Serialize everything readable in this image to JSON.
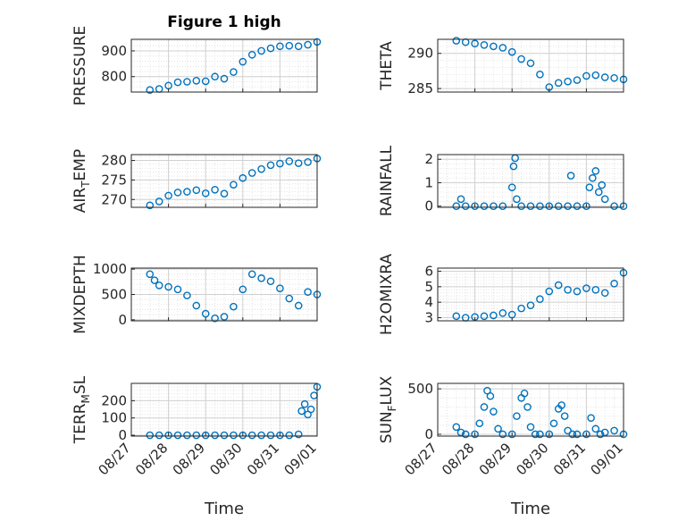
{
  "figure": {
    "title": "Figure 1 high",
    "xlabel": "Time",
    "x_ticklabels": [
      "08/27",
      "08/28",
      "08/29",
      "08/30",
      "08/31",
      "09/01"
    ]
  },
  "chart_data": [
    {
      "type": "scatter",
      "ylabel": "PRESSURE",
      "ylabel_sub": "",
      "ylabel_tail": "",
      "ylim": [
        740,
        945
      ],
      "yticks": [
        800,
        900
      ],
      "xlim": [
        "08/27",
        "09/01"
      ],
      "grid": "on",
      "marker_color": "#0072BD",
      "x": [
        "08/27 12:00",
        "08/27 18:00",
        "08/28 00:00",
        "08/28 06:00",
        "08/28 12:00",
        "08/28 18:00",
        "08/29 00:00",
        "08/29 06:00",
        "08/29 12:00",
        "08/29 18:00",
        "08/30 00:00",
        "08/30 06:00",
        "08/30 12:00",
        "08/30 18:00",
        "08/31 00:00",
        "08/31 06:00",
        "08/31 12:00",
        "08/31 18:00",
        "09/01 00:00"
      ],
      "y": [
        748,
        752,
        765,
        778,
        780,
        784,
        782,
        800,
        792,
        818,
        858,
        885,
        900,
        910,
        918,
        920,
        918,
        924,
        935
      ]
    },
    {
      "type": "scatter",
      "ylabel": "THETA",
      "ylabel_sub": "",
      "ylabel_tail": "",
      "ylim": [
        284.5,
        292
      ],
      "yticks": [
        285,
        290
      ],
      "xlim": [
        "08/27",
        "09/01"
      ],
      "grid": "on",
      "marker_color": "#0072BD",
      "x": [
        "08/27 12:00",
        "08/27 18:00",
        "08/28 00:00",
        "08/28 06:00",
        "08/28 12:00",
        "08/28 18:00",
        "08/29 00:00",
        "08/29 06:00",
        "08/29 12:00",
        "08/29 18:00",
        "08/30 00:00",
        "08/30 06:00",
        "08/30 12:00",
        "08/30 18:00",
        "08/31 00:00",
        "08/31 06:00",
        "08/31 12:00",
        "08/31 18:00",
        "09/01 00:00"
      ],
      "y": [
        291.8,
        291.6,
        291.4,
        291.2,
        291.0,
        290.8,
        290.2,
        289.2,
        288.6,
        287.0,
        285.2,
        285.8,
        286.0,
        286.2,
        286.8,
        286.9,
        286.6,
        286.5,
        286.3
      ]
    },
    {
      "type": "scatter",
      "ylabel": "AIR",
      "ylabel_sub": "T",
      "ylabel_tail": "EMP",
      "ylim": [
        268,
        281.5
      ],
      "yticks": [
        270,
        275,
        280
      ],
      "xlim": [
        "08/27",
        "09/01"
      ],
      "grid": "on",
      "marker_color": "#0072BD",
      "x": [
        "08/27 12:00",
        "08/27 18:00",
        "08/28 00:00",
        "08/28 06:00",
        "08/28 12:00",
        "08/28 18:00",
        "08/29 00:00",
        "08/29 06:00",
        "08/29 12:00",
        "08/29 18:00",
        "08/30 00:00",
        "08/30 06:00",
        "08/30 12:00",
        "08/30 18:00",
        "08/31 00:00",
        "08/31 06:00",
        "08/31 12:00",
        "08/31 18:00",
        "09/01 00:00"
      ],
      "y": [
        268.5,
        269.5,
        271.0,
        271.8,
        272.0,
        272.4,
        271.6,
        272.5,
        271.5,
        273.8,
        275.5,
        276.8,
        277.8,
        278.8,
        279.2,
        279.8,
        279.3,
        279.6,
        280.5
      ]
    },
    {
      "type": "scatter",
      "ylabel": "RAINFALL",
      "ylabel_sub": "",
      "ylabel_tail": "",
      "ylim": [
        -0.05,
        2.2
      ],
      "yticks": [
        0,
        1,
        2
      ],
      "xlim": [
        "08/27",
        "09/01"
      ],
      "grid": "on",
      "marker_color": "#0072BD",
      "x": [
        "08/27 12:00",
        "08/27 15:00",
        "08/27 18:00",
        "08/28 00:00",
        "08/28 06:00",
        "08/28 12:00",
        "08/28 18:00",
        "08/29 00:00",
        "08/29 01:00",
        "08/29 02:00",
        "08/29 03:00",
        "08/29 06:00",
        "08/29 12:00",
        "08/29 18:00",
        "08/30 00:00",
        "08/30 06:00",
        "08/30 12:00",
        "08/30 14:00",
        "08/30 18:00",
        "08/31 00:00",
        "08/31 02:00",
        "08/31 04:00",
        "08/31 06:00",
        "08/31 08:00",
        "08/31 10:00",
        "08/31 12:00",
        "08/31 18:00",
        "09/01 00:00"
      ],
      "y": [
        0,
        0.3,
        0,
        0,
        0,
        0,
        0,
        0.8,
        1.7,
        2.05,
        0.3,
        0,
        0,
        0,
        0,
        0,
        0,
        1.3,
        0,
        0,
        0.8,
        1.2,
        1.5,
        0.6,
        0.9,
        0.3,
        0,
        0
      ]
    },
    {
      "type": "scatter",
      "ylabel": "MIXDEPTH",
      "ylabel_sub": "",
      "ylabel_tail": "",
      "ylim": [
        -20,
        1020
      ],
      "yticks": [
        0,
        500,
        1000
      ],
      "xlim": [
        "08/27",
        "09/01"
      ],
      "grid": "on",
      "marker_color": "#0072BD",
      "x": [
        "08/27 12:00",
        "08/27 15:00",
        "08/27 18:00",
        "08/28 00:00",
        "08/28 06:00",
        "08/28 12:00",
        "08/28 18:00",
        "08/29 00:00",
        "08/29 06:00",
        "08/29 12:00",
        "08/29 18:00",
        "08/30 00:00",
        "08/30 06:00",
        "08/30 12:00",
        "08/30 18:00",
        "08/31 00:00",
        "08/31 06:00",
        "08/31 12:00",
        "08/31 18:00",
        "09/01 00:00"
      ],
      "y": [
        900,
        780,
        680,
        650,
        600,
        480,
        280,
        120,
        30,
        60,
        260,
        600,
        900,
        820,
        760,
        620,
        420,
        280,
        550,
        500
      ]
    },
    {
      "type": "scatter",
      "ylabel": "H2OMIXRA",
      "ylabel_sub": "",
      "ylabel_tail": "",
      "ylim": [
        2.8,
        6.2
      ],
      "yticks": [
        3,
        4,
        5,
        6
      ],
      "xlim": [
        "08/27",
        "09/01"
      ],
      "grid": "on",
      "marker_color": "#0072BD",
      "x": [
        "08/27 12:00",
        "08/27 18:00",
        "08/28 00:00",
        "08/28 06:00",
        "08/28 12:00",
        "08/28 18:00",
        "08/29 00:00",
        "08/29 06:00",
        "08/29 12:00",
        "08/29 18:00",
        "08/30 00:00",
        "08/30 06:00",
        "08/30 12:00",
        "08/30 18:00",
        "08/31 00:00",
        "08/31 06:00",
        "08/31 12:00",
        "08/31 18:00",
        "09/01 00:00"
      ],
      "y": [
        3.1,
        3.0,
        3.05,
        3.1,
        3.15,
        3.3,
        3.2,
        3.6,
        3.8,
        4.2,
        4.7,
        5.1,
        4.8,
        4.7,
        4.9,
        4.8,
        4.6,
        5.2,
        5.9
      ]
    },
    {
      "type": "scatter",
      "ylabel": "TERR",
      "ylabel_sub": "M",
      "ylabel_tail": "SL",
      "ylim": [
        -5,
        300
      ],
      "yticks": [
        0,
        100,
        200
      ],
      "xlim": [
        "08/27",
        "09/01"
      ],
      "grid": "on",
      "marker_color": "#0072BD",
      "x": [
        "08/27 12:00",
        "08/27 18:00",
        "08/28 00:00",
        "08/28 06:00",
        "08/28 12:00",
        "08/28 18:00",
        "08/29 00:00",
        "08/29 06:00",
        "08/29 12:00",
        "08/29 18:00",
        "08/30 00:00",
        "08/30 06:00",
        "08/30 12:00",
        "08/30 18:00",
        "08/31 00:00",
        "08/31 06:00",
        "08/31 12:00",
        "08/31 14:00",
        "08/31 16:00",
        "08/31 18:00",
        "08/31 20:00",
        "08/31 22:00",
        "09/01 00:00"
      ],
      "y": [
        0,
        0,
        0,
        0,
        0,
        0,
        0,
        0,
        0,
        0,
        0,
        0,
        0,
        0,
        0,
        0,
        5,
        140,
        180,
        120,
        150,
        230,
        280
      ]
    },
    {
      "type": "scatter",
      "ylabel": "SUN",
      "ylabel_sub": "F",
      "ylabel_tail": "LUX",
      "ylim": [
        -20,
        560
      ],
      "yticks": [
        0,
        500
      ],
      "xlim": [
        "08/27",
        "09/01"
      ],
      "grid": "on",
      "marker_color": "#0072BD",
      "x": [
        "08/27 12:00",
        "08/27 15:00",
        "08/27 18:00",
        "08/28 00:00",
        "08/28 03:00",
        "08/28 06:00",
        "08/28 08:00",
        "08/28 10:00",
        "08/28 12:00",
        "08/28 15:00",
        "08/28 18:00",
        "08/29 00:00",
        "08/29 03:00",
        "08/29 06:00",
        "08/29 08:00",
        "08/29 10:00",
        "08/29 12:00",
        "08/29 15:00",
        "08/29 18:00",
        "08/30 00:00",
        "08/30 03:00",
        "08/30 06:00",
        "08/30 08:00",
        "08/30 10:00",
        "08/30 12:00",
        "08/30 15:00",
        "08/30 18:00",
        "08/31 00:00",
        "08/31 03:00",
        "08/31 06:00",
        "08/31 09:00",
        "08/31 12:00",
        "08/31 18:00",
        "09/01 00:00"
      ],
      "y": [
        80,
        20,
        0,
        0,
        120,
        300,
        480,
        420,
        250,
        60,
        0,
        0,
        200,
        400,
        450,
        300,
        80,
        0,
        0,
        0,
        120,
        280,
        320,
        200,
        40,
        0,
        0,
        0,
        180,
        60,
        0,
        20,
        40,
        0
      ]
    }
  ]
}
